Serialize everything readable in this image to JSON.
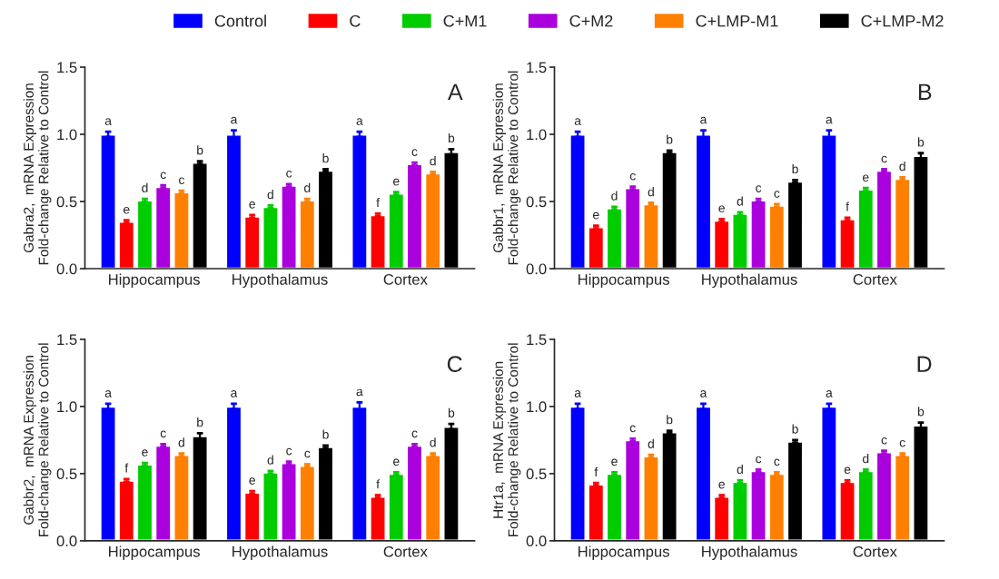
{
  "chart_data": [
    {
      "type": "bar",
      "annotations": [
        "A"
      ],
      "ylabel": "Gabra2,  mRNA Expression\nFold-change Relative to Control",
      "categories": [
        "Hippocampus",
        "Hypothalamus",
        "Cortex"
      ],
      "ylim": [
        0,
        1.5
      ],
      "yticks": [
        {
          "value": 0,
          "label": "0.0"
        },
        {
          "value": 0.5,
          "label": "0.5"
        },
        {
          "value": 1,
          "label": "1.0"
        },
        {
          "value": 1.5,
          "label": "1.5"
        }
      ],
      "legend": "top",
      "series": [
        {
          "name": "Control",
          "color": "#0000ff",
          "values": [
            1.0,
            1.0,
            1.0
          ],
          "errors": [
            0.02,
            0.03,
            0.02
          ],
          "value_labels": [
            "a",
            "a",
            "a"
          ]
        },
        {
          "name": "C",
          "color": "#ff0000",
          "values": [
            0.35,
            0.39,
            0.4
          ],
          "errors": [
            0.01,
            0.01,
            0.01
          ],
          "value_labels": [
            "e",
            "e",
            "f"
          ]
        },
        {
          "name": "C+M1",
          "color": "#00cc00",
          "values": [
            0.51,
            0.46,
            0.56
          ],
          "errors": [
            0.01,
            0.01,
            0.01
          ],
          "value_labels": [
            "d",
            "d",
            "e"
          ]
        },
        {
          "name": "C+M2",
          "color": "#aa00dd",
          "values": [
            0.61,
            0.62,
            0.78
          ],
          "errors": [
            0.01,
            0.01,
            0.01
          ],
          "value_labels": [
            "c",
            "c",
            "c"
          ]
        },
        {
          "name": "C+LMP-M1",
          "color": "#ff8000",
          "values": [
            0.57,
            0.51,
            0.71
          ],
          "errors": [
            0.01,
            0.01,
            0.01
          ],
          "value_labels": [
            "c",
            "d",
            "d"
          ]
        },
        {
          "name": "C+LMP-M2",
          "color": "#000000",
          "values": [
            0.79,
            0.73,
            0.87
          ],
          "errors": [
            0.01,
            0.01,
            0.02
          ],
          "value_labels": [
            "b",
            "b",
            "b"
          ]
        }
      ]
    },
    {
      "type": "bar",
      "annotations": [
        "B"
      ],
      "ylabel": "Gabbr1,  mRNA Expression\nFold-change Relative to Control",
      "categories": [
        "Hippocampus",
        "Hypothalamus",
        "Cortex"
      ],
      "ylim": [
        0,
        1.5
      ],
      "yticks": [
        {
          "value": 0,
          "label": "0.0"
        },
        {
          "value": 0.5,
          "label": "0.5"
        },
        {
          "value": 1,
          "label": "1.0"
        },
        {
          "value": 1.5,
          "label": "1.5"
        }
      ],
      "series": [
        {
          "color": "#0000ff",
          "values": [
            1.0,
            1.0,
            1.0
          ],
          "errors": [
            0.02,
            0.03,
            0.03
          ],
          "value_labels": [
            "a",
            "a",
            "a"
          ]
        },
        {
          "color": "#ff0000",
          "values": [
            0.31,
            0.36,
            0.37
          ],
          "errors": [
            0.01,
            0.01,
            0.01
          ],
          "value_labels": [
            "e",
            "e",
            "f"
          ]
        },
        {
          "color": "#00cc00",
          "values": [
            0.45,
            0.41,
            0.59
          ],
          "errors": [
            0.01,
            0.01,
            0.01
          ],
          "value_labels": [
            "d",
            "d",
            "e"
          ]
        },
        {
          "color": "#aa00dd",
          "values": [
            0.6,
            0.51,
            0.73
          ],
          "errors": [
            0.01,
            0.01,
            0.01
          ],
          "value_labels": [
            "c",
            "c",
            "c"
          ]
        },
        {
          "color": "#ff8000",
          "values": [
            0.48,
            0.47,
            0.67
          ],
          "errors": [
            0.01,
            0.01,
            0.01
          ],
          "value_labels": [
            "d",
            "c",
            "d"
          ]
        },
        {
          "color": "#000000",
          "values": [
            0.87,
            0.65,
            0.84
          ],
          "errors": [
            0.01,
            0.01,
            0.02
          ],
          "value_labels": [
            "b",
            "b",
            "b"
          ]
        }
      ]
    },
    {
      "type": "bar",
      "annotations": [
        "C"
      ],
      "ylabel": "Gabbr2,  mRNA Expression\nFold-change Relative to Control",
      "categories": [
        "Hippocampus",
        "Hypothalamus",
        "Cortex"
      ],
      "ylim": [
        0,
        1.5
      ],
      "yticks": [
        {
          "value": 0,
          "label": "0.0"
        },
        {
          "value": 0.5,
          "label": "0.5"
        },
        {
          "value": 1,
          "label": "1.0"
        },
        {
          "value": 1.5,
          "label": "1.5"
        }
      ],
      "series": [
        {
          "color": "#0000ff",
          "values": [
            1.0,
            1.0,
            1.0
          ],
          "errors": [
            0.02,
            0.02,
            0.03
          ],
          "value_labels": [
            "a",
            "a",
            "a"
          ]
        },
        {
          "color": "#ff0000",
          "values": [
            0.45,
            0.36,
            0.33
          ],
          "errors": [
            0.01,
            0.01,
            0.01
          ],
          "value_labels": [
            "f",
            "e",
            "f"
          ]
        },
        {
          "color": "#00cc00",
          "values": [
            0.57,
            0.51,
            0.5
          ],
          "errors": [
            0.01,
            0.01,
            0.01
          ],
          "value_labels": [
            "e",
            "d",
            "e"
          ]
        },
        {
          "color": "#aa00dd",
          "values": [
            0.71,
            0.58,
            0.71
          ],
          "errors": [
            0.01,
            0.01,
            0.01
          ],
          "value_labels": [
            "c",
            "c",
            "c"
          ]
        },
        {
          "color": "#ff8000",
          "values": [
            0.64,
            0.56,
            0.64
          ],
          "errors": [
            0.01,
            0.01,
            0.01
          ],
          "value_labels": [
            "d",
            "c",
            "d"
          ]
        },
        {
          "color": "#000000",
          "values": [
            0.78,
            0.7,
            0.85
          ],
          "errors": [
            0.02,
            0.01,
            0.02
          ],
          "value_labels": [
            "b",
            "b",
            "b"
          ]
        }
      ]
    },
    {
      "type": "bar",
      "annotations": [
        "D"
      ],
      "ylabel": "Htr1a,  mRNA Expression\nFold-change Relative to Control",
      "categories": [
        "Hippocampus",
        "Hypothalamus",
        "Cortex"
      ],
      "ylim": [
        0,
        1.5
      ],
      "yticks": [
        {
          "value": 0,
          "label": "0.0"
        },
        {
          "value": 0.5,
          "label": "0.5"
        },
        {
          "value": 1,
          "label": "1.0"
        },
        {
          "value": 1.5,
          "label": "1.5"
        }
      ],
      "series": [
        {
          "color": "#0000ff",
          "values": [
            1.0,
            1.0,
            1.0
          ],
          "errors": [
            0.02,
            0.02,
            0.02
          ],
          "value_labels": [
            "a",
            "a",
            "a"
          ]
        },
        {
          "color": "#ff0000",
          "values": [
            0.42,
            0.33,
            0.44
          ],
          "errors": [
            0.01,
            0.01,
            0.01
          ],
          "value_labels": [
            "f",
            "e",
            "e"
          ]
        },
        {
          "color": "#00cc00",
          "values": [
            0.5,
            0.44,
            0.52
          ],
          "errors": [
            0.01,
            0.01,
            0.01
          ],
          "value_labels": [
            "e",
            "d",
            "d"
          ]
        },
        {
          "color": "#aa00dd",
          "values": [
            0.75,
            0.52,
            0.66
          ],
          "errors": [
            0.01,
            0.01,
            0.01
          ],
          "value_labels": [
            "c",
            "c",
            "c"
          ]
        },
        {
          "color": "#ff8000",
          "values": [
            0.63,
            0.5,
            0.64
          ],
          "errors": [
            0.01,
            0.01,
            0.01
          ],
          "value_labels": [
            "d",
            "c",
            "c"
          ]
        },
        {
          "color": "#000000",
          "values": [
            0.81,
            0.74,
            0.86
          ],
          "errors": [
            0.01,
            0.01,
            0.02
          ],
          "value_labels": [
            "b",
            "b",
            "b"
          ]
        }
      ]
    }
  ]
}
